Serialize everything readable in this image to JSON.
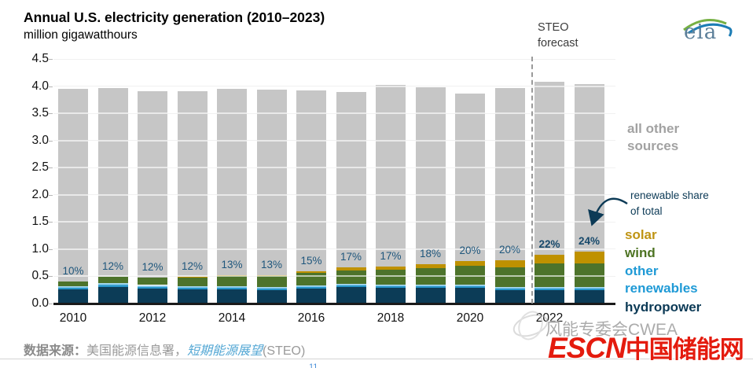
{
  "header": {
    "title": "Annual U.S. electricity generation (2010–2023)",
    "subtitle": "million gigawatthours"
  },
  "chart_data": {
    "type": "bar",
    "stacked": true,
    "categories": [
      2010,
      2011,
      2012,
      2013,
      2014,
      2015,
      2016,
      2017,
      2018,
      2019,
      2020,
      2021,
      2022,
      2023
    ],
    "x_tick_labels": [
      "2010",
      "2012",
      "2014",
      "2016",
      "2018",
      "2020",
      "2022"
    ],
    "ylim": [
      0,
      4.5
    ],
    "y_tick_step": 0.5,
    "ylabel": "million gigawatthours",
    "grid": true,
    "series": [
      {
        "name": "hydropower",
        "color": "#0c3c57",
        "values": [
          0.26,
          0.31,
          0.28,
          0.26,
          0.26,
          0.25,
          0.27,
          0.3,
          0.29,
          0.29,
          0.29,
          0.25,
          0.25,
          0.25
        ]
      },
      {
        "name": "other renewables",
        "color": "#2795c9",
        "values": [
          0.06,
          0.06,
          0.06,
          0.06,
          0.06,
          0.06,
          0.06,
          0.06,
          0.06,
          0.06,
          0.06,
          0.06,
          0.06,
          0.06
        ]
      },
      {
        "name": "wind",
        "color": "#4d732b",
        "values": [
          0.09,
          0.12,
          0.14,
          0.16,
          0.18,
          0.19,
          0.23,
          0.25,
          0.27,
          0.3,
          0.34,
          0.36,
          0.43,
          0.43
        ]
      },
      {
        "name": "solar",
        "color": "#bf9100",
        "values": [
          0.0,
          0.0,
          0.0,
          0.01,
          0.02,
          0.02,
          0.04,
          0.05,
          0.06,
          0.07,
          0.09,
          0.12,
          0.15,
          0.22
        ]
      },
      {
        "name": "all other sources",
        "color": "#c6c6c6",
        "computed": "total minus renewables"
      }
    ],
    "totals": [
      3.95,
      3.96,
      3.9,
      3.9,
      3.95,
      3.93,
      3.92,
      3.89,
      4.02,
      3.98,
      3.86,
      3.96,
      4.08,
      4.03
    ],
    "renewable_share_labels": [
      "10%",
      "12%",
      "12%",
      "12%",
      "13%",
      "13%",
      "15%",
      "17%",
      "17%",
      "18%",
      "20%",
      "20%",
      "22%",
      "24%"
    ],
    "forecast_start_index": 12,
    "annotations": {
      "forecast_label": "STEO forecast",
      "renewable_share_callout": "renewable share of total"
    }
  },
  "legend": {
    "all_other_sources": "all other sources",
    "renewable_share": "renewable share of total",
    "solar": "solar",
    "wind": "wind",
    "other_renewables": "other renewables",
    "hydropower": "hydropower",
    "colors": {
      "all_other_sources": "#a2a2a2",
      "solar": "#bf9413",
      "wind": "#4d7322",
      "other_renewables": "#1f9ad6",
      "hydropower": "#0c3a56"
    }
  },
  "logos": {
    "eia": "eia",
    "escn_en": "ESCN",
    "escn_cn": "中国储能网",
    "escn_color": "#e41b0e"
  },
  "watermark": {
    "gray_text": "风能专委会CWEA"
  },
  "source_line": {
    "prefix": "数据来源：",
    "agency": "美国能源信息署，",
    "link": "短期能源展望",
    "suffix": "(STEO)"
  },
  "page_marker": "11"
}
